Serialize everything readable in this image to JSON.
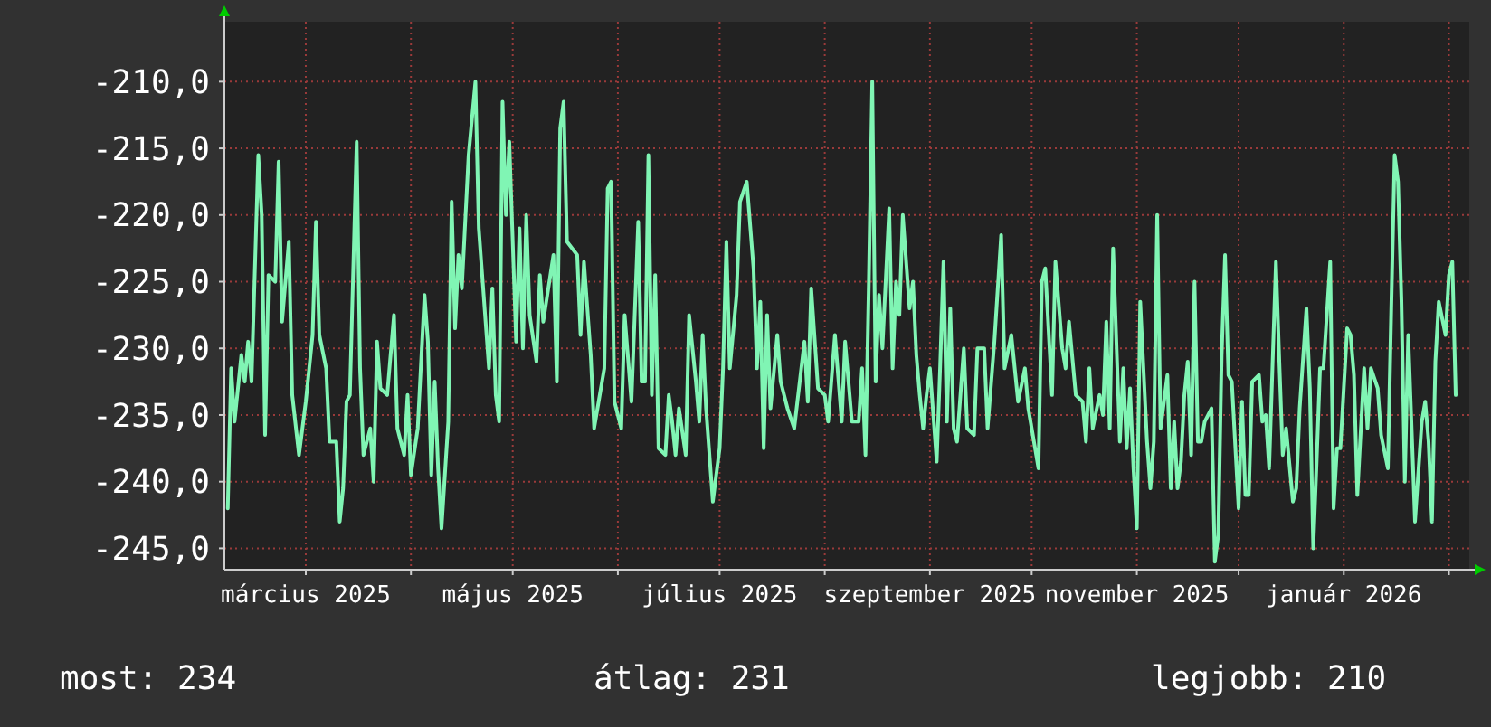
{
  "chart_data": {
    "type": "line",
    "x": [
      "2025-02-06",
      "2025-02-07",
      "2025-02-08",
      "2025-02-10",
      "2025-02-11",
      "2025-02-12",
      "2025-02-13",
      "2025-02-15",
      "2025-02-16",
      "2025-02-17",
      "2025-02-18",
      "2025-02-20",
      "2025-02-21",
      "2025-02-22",
      "2025-02-24",
      "2025-02-25",
      "2025-02-27",
      "2025-03-01",
      "2025-03-03",
      "2025-03-04",
      "2025-03-05",
      "2025-03-07",
      "2025-03-08",
      "2025-03-10",
      "2025-03-11",
      "2025-03-12",
      "2025-03-13",
      "2025-03-14",
      "2025-03-16",
      "2025-03-17",
      "2025-03-18",
      "2025-03-20",
      "2025-03-21",
      "2025-03-22",
      "2025-03-23",
      "2025-03-25",
      "2025-03-27",
      "2025-03-28",
      "2025-03-30",
      "2025-03-31",
      "2025-04-01",
      "2025-04-03",
      "2025-04-05",
      "2025-04-06",
      "2025-04-07",
      "2025-04-08",
      "2025-04-09",
      "2025-04-10",
      "2025-04-12",
      "2025-04-13",
      "2025-04-14",
      "2025-04-15",
      "2025-04-16",
      "2025-04-18",
      "2025-04-20",
      "2025-04-21",
      "2025-04-23",
      "2025-04-24",
      "2025-04-25",
      "2025-04-26",
      "2025-04-27",
      "2025-04-28",
      "2025-04-29",
      "2025-04-30",
      "2025-05-02",
      "2025-05-03",
      "2025-05-04",
      "2025-05-05",
      "2025-05-06",
      "2025-05-08",
      "2025-05-09",
      "2025-05-10",
      "2025-05-13",
      "2025-05-14",
      "2025-05-15",
      "2025-05-16",
      "2025-05-17",
      "2025-05-20",
      "2025-05-21",
      "2025-05-22",
      "2025-05-24",
      "2025-05-25",
      "2025-05-28",
      "2025-05-29",
      "2025-05-30",
      "2025-05-31",
      "2025-06-02",
      "2025-06-03",
      "2025-06-05",
      "2025-06-07",
      "2025-06-08",
      "2025-06-09",
      "2025-06-10",
      "2025-06-11",
      "2025-06-12",
      "2025-06-13",
      "2025-06-15",
      "2025-06-16",
      "2025-06-17",
      "2025-06-18",
      "2025-06-19",
      "2025-06-21",
      "2025-06-22",
      "2025-06-23",
      "2025-06-24",
      "2025-06-25",
      "2025-06-26",
      "2025-06-27",
      "2025-06-29",
      "2025-07-01",
      "2025-07-02",
      "2025-07-03",
      "2025-07-04",
      "2025-07-06",
      "2025-07-07",
      "2025-07-09",
      "2025-07-11",
      "2025-07-12",
      "2025-07-13",
      "2025-07-14",
      "2025-07-15",
      "2025-07-16",
      "2025-07-18",
      "2025-07-19",
      "2025-07-21",
      "2025-07-23",
      "2025-07-26",
      "2025-07-27",
      "2025-07-28",
      "2025-07-30",
      "2025-08-01",
      "2025-08-02",
      "2025-08-04",
      "2025-08-06",
      "2025-08-07",
      "2025-08-09",
      "2025-08-11",
      "2025-08-12",
      "2025-08-13",
      "2025-08-14",
      "2025-08-15",
      "2025-08-16",
      "2025-08-17",
      "2025-08-18",
      "2025-08-20",
      "2025-08-21",
      "2025-08-22",
      "2025-08-23",
      "2025-08-24",
      "2025-08-26",
      "2025-08-27",
      "2025-08-28",
      "2025-08-29",
      "2025-08-30",
      "2025-08-31",
      "2025-09-01",
      "2025-09-03",
      "2025-09-04",
      "2025-09-05",
      "2025-09-06",
      "2025-09-07",
      "2025-09-08",
      "2025-09-09",
      "2025-09-11",
      "2025-09-12",
      "2025-09-14",
      "2025-09-15",
      "2025-09-17",
      "2025-09-18",
      "2025-09-20",
      "2025-09-22",
      "2025-09-23",
      "2025-09-25",
      "2025-09-27",
      "2025-09-29",
      "2025-09-30",
      "2025-10-03",
      "2025-10-04",
      "2025-10-05",
      "2025-10-07",
      "2025-10-08",
      "2025-10-10",
      "2025-10-11",
      "2025-10-12",
      "2025-10-14",
      "2025-10-16",
      "2025-10-17",
      "2025-10-18",
      "2025-10-19",
      "2025-10-21",
      "2025-10-22",
      "2025-10-23",
      "2025-10-24",
      "2025-10-25",
      "2025-10-27",
      "2025-10-28",
      "2025-10-29",
      "2025-10-30",
      "2025-10-31",
      "2025-11-01",
      "2025-11-02",
      "2025-11-04",
      "2025-11-05",
      "2025-11-06",
      "2025-11-07",
      "2025-11-08",
      "2025-11-10",
      "2025-11-11",
      "2025-11-12",
      "2025-11-13",
      "2025-11-14",
      "2025-11-15",
      "2025-11-16",
      "2025-11-17",
      "2025-11-18",
      "2025-11-19",
      "2025-11-20",
      "2025-11-21",
      "2025-11-23",
      "2025-11-24",
      "2025-11-25",
      "2025-11-26",
      "2025-11-27",
      "2025-11-28",
      "2025-11-29",
      "2025-12-01",
      "2025-12-02",
      "2025-12-03",
      "2025-12-04",
      "2025-12-05",
      "2025-12-07",
      "2025-12-08",
      "2025-12-09",
      "2025-12-10",
      "2025-12-12",
      "2025-12-13",
      "2025-12-14",
      "2025-12-15",
      "2025-12-17",
      "2025-12-18",
      "2025-12-19",
      "2025-12-21",
      "2025-12-22",
      "2025-12-23",
      "2025-12-24",
      "2025-12-25",
      "2025-12-26",
      "2025-12-28",
      "2025-12-29",
      "2025-12-30",
      "2025-12-31",
      "2026-01-02",
      "2026-01-03",
      "2026-01-04",
      "2026-01-05",
      "2026-01-07",
      "2026-01-08",
      "2026-01-09",
      "2026-01-11",
      "2026-01-12",
      "2026-01-14",
      "2026-01-15",
      "2026-01-16",
      "2026-01-17",
      "2026-01-18",
      "2026-01-19",
      "2026-01-20",
      "2026-01-21",
      "2026-01-22",
      "2026-01-24",
      "2026-01-25",
      "2026-01-26",
      "2026-01-27",
      "2026-01-28",
      "2026-01-29",
      "2026-01-31",
      "2026-02-01",
      "2026-02-02",
      "2026-02-03"
    ],
    "series": [
      {
        "color": "#80f5b4",
        "values": [
          -242,
          -231.5,
          -235.5,
          -230.5,
          -232.5,
          -229.5,
          -232.5,
          -215.5,
          -220,
          -236.5,
          -224.5,
          -225,
          -216,
          -228,
          -222,
          -233.5,
          -238,
          -234,
          -229,
          -220.5,
          -229,
          -231.5,
          -237,
          -237,
          -243,
          -240.5,
          -234,
          -233.5,
          -214.5,
          -231.5,
          -238,
          -236,
          -240,
          -229.5,
          -233,
          -233.5,
          -227.5,
          -236,
          -238,
          -233.5,
          -239.5,
          -236,
          -226,
          -229.5,
          -239.5,
          -232.5,
          -239,
          -243.5,
          -235.5,
          -219,
          -228.5,
          -223,
          -225.5,
          -215.5,
          -210,
          -221,
          -228,
          -231.5,
          -225.5,
          -233.5,
          -235.5,
          -211.5,
          -220,
          -214.5,
          -229.5,
          -221,
          -230,
          -220,
          -227.5,
          -231,
          -224.5,
          -228,
          -223,
          -232.5,
          -213.5,
          -211.5,
          -222,
          -223,
          -229,
          -223.5,
          -230.5,
          -236,
          -231.5,
          -218,
          -217.5,
          -234,
          -236,
          -227.5,
          -234,
          -220.5,
          -232.5,
          -232.5,
          -215.5,
          -233.5,
          -224.5,
          -237.5,
          -238,
          -233.5,
          -235.5,
          -238,
          -234.5,
          -238,
          -227.5,
          -230,
          -232.5,
          -235.5,
          -229,
          -234.5,
          -241.5,
          -237.5,
          -231.5,
          -222,
          -231.5,
          -226,
          -219,
          -217.5,
          -224,
          -231.5,
          -226.5,
          -237.5,
          -227.5,
          -234.5,
          -229,
          -232.5,
          -234.5,
          -236,
          -229.5,
          -234,
          -225.5,
          -233,
          -233.5,
          -235.5,
          -229,
          -235.5,
          -229.5,
          -235.5,
          -235.5,
          -231.5,
          -238,
          -225,
          -210,
          -232.5,
          -226,
          -230,
          -219.5,
          -231.5,
          -225,
          -227.5,
          -220,
          -227,
          -225,
          -230.5,
          -233.5,
          -236,
          -233.5,
          -231.5,
          -238.5,
          -231.5,
          -223.5,
          -235.5,
          -227,
          -236,
          -237,
          -230,
          -236,
          -236.5,
          -230,
          -230,
          -236,
          -229.5,
          -221.5,
          -231.5,
          -229,
          -234,
          -231.5,
          -234.5,
          -239,
          -225,
          -224,
          -233.5,
          -223.5,
          -230,
          -231.5,
          -228,
          -233.5,
          -234,
          -237,
          -231.5,
          -236,
          -233.5,
          -235,
          -228,
          -236,
          -222.5,
          -237,
          -231.5,
          -237.5,
          -233,
          -239,
          -243.5,
          -226.5,
          -237,
          -240.5,
          -237,
          -220,
          -236,
          -232,
          -240.5,
          -235.5,
          -240.5,
          -238.5,
          -233.5,
          -231,
          -238,
          -225,
          -237,
          -237,
          -235.5,
          -234.5,
          -246,
          -244,
          -230.5,
          -223,
          -232,
          -232.5,
          -242,
          -234,
          -241,
          -241,
          -232.5,
          -232,
          -235.5,
          -235,
          -239,
          -223.5,
          -231,
          -238,
          -236,
          -241.5,
          -240.5,
          -234.5,
          -227,
          -233,
          -245,
          -238.5,
          -231.5,
          -231.5,
          -223.5,
          -242,
          -237.5,
          -237.5,
          -228.5,
          -229,
          -232,
          -241,
          -231.5,
          -236,
          -231.5,
          -233,
          -236.5,
          -239,
          -227,
          -215.5,
          -217.5,
          -226.5,
          -240,
          -229,
          -236,
          -243,
          -235.5,
          -234,
          -237,
          -243,
          -231,
          -226.5,
          -229,
          -224.5,
          -223.5,
          -233.5
        ]
      }
    ],
    "xlim": [
      "2025-02-05",
      "2026-02-07"
    ],
    "xticks": [
      {
        "value": "2025-03-01",
        "label": "március 2025"
      },
      {
        "value": "2025-04-01",
        "label": null
      },
      {
        "value": "2025-05-01",
        "label": "május 2025"
      },
      {
        "value": "2025-06-01",
        "label": null
      },
      {
        "value": "2025-07-01",
        "label": "július 2025"
      },
      {
        "value": "2025-08-01",
        "label": null
      },
      {
        "value": "2025-09-01",
        "label": "szeptember 2025"
      },
      {
        "value": "2025-10-01",
        "label": null
      },
      {
        "value": "2025-11-01",
        "label": "november 2025"
      },
      {
        "value": "2025-12-01",
        "label": null
      },
      {
        "value": "2026-01-01",
        "label": "január 2026"
      },
      {
        "value": "2026-02-01",
        "label": null
      }
    ],
    "ylim": [
      -246.6,
      -205.5
    ],
    "yticks": [
      {
        "value": -245,
        "label": "-245,0"
      },
      {
        "value": -240,
        "label": "-240,0"
      },
      {
        "value": -235,
        "label": "-235,0"
      },
      {
        "value": -230,
        "label": "-230,0"
      },
      {
        "value": -225,
        "label": "-225,0"
      },
      {
        "value": -220,
        "label": "-220,0"
      },
      {
        "value": -215,
        "label": "-215,0"
      },
      {
        "value": -210,
        "label": "-210,0"
      }
    ],
    "grid": true,
    "annotations": [
      "most: 234",
      "átlag: 231",
      "legjobb: 210"
    ]
  }
}
